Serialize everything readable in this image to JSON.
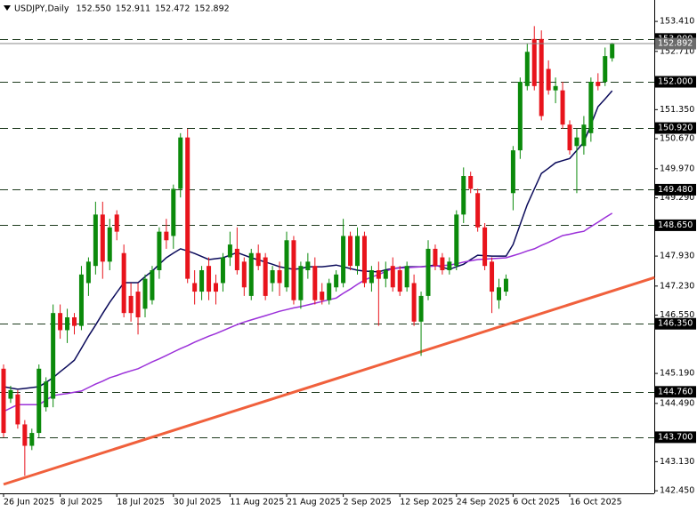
{
  "chart_data": {
    "type": "candlestick",
    "title": "USDJPY,Daily",
    "title_values": [
      "152.550",
      "152.911",
      "152.472",
      "152.892"
    ],
    "categories": [
      "26 Jun 2025",
      null,
      null,
      null,
      null,
      null,
      null,
      null,
      "8 Jul 2025",
      null,
      null,
      null,
      null,
      null,
      null,
      null,
      "18 Jul 2025",
      null,
      null,
      null,
      null,
      null,
      null,
      null,
      "30 Jul 2025",
      null,
      null,
      null,
      null,
      null,
      null,
      null,
      "11 Aug 2025",
      null,
      null,
      null,
      null,
      null,
      null,
      null,
      "21 Aug 2025",
      null,
      null,
      null,
      null,
      null,
      null,
      null,
      "2 Sep 2025",
      null,
      null,
      null,
      null,
      null,
      null,
      null,
      "12 Sep 2025",
      null,
      null,
      null,
      null,
      null,
      null,
      null,
      "24 Sep 2025",
      null,
      null,
      null,
      null,
      null,
      null,
      null,
      "6 Oct 2025",
      null,
      null,
      null,
      null,
      null,
      null,
      null,
      "16 Oct 2025",
      null,
      null,
      null,
      null,
      null,
      null
    ],
    "open": [
      145.3,
      144.6,
      144.7,
      144.0,
      143.5,
      143.8,
      144.4,
      144.6,
      146.6,
      146.2,
      146.5,
      146.3,
      147.3,
      147.7,
      148.9,
      147.8,
      148.9,
      148.0,
      147.0,
      147.1,
      146.7,
      146.9,
      147.6,
      148.5,
      148.4,
      149.5,
      150.7,
      147.3,
      147.1,
      147.7,
      147.3,
      147.3,
      147.9,
      148.1,
      147.8,
      147.0,
      148.0,
      147.9,
      147.3,
      147.6,
      147.2,
      148.3,
      146.9,
      147.6,
      147.7,
      147.1,
      146.9,
      147.2,
      147.3,
      148.4,
      147.7,
      148.4,
      147.3,
      147.6,
      147.4,
      147.7,
      147.6,
      147.2,
      147.3,
      146.4,
      147.0,
      148.1,
      147.9,
      147.6,
      147.7,
      148.9,
      149.8,
      149.4,
      148.6,
      147.8,
      146.9,
      147.1,
      149.4,
      150.4,
      151.9,
      153.0,
      153.0,
      152.3,
      151.8,
      151.8,
      151.0,
      150.5,
      150.5,
      150.8,
      152.0,
      152.0,
      152.55
    ],
    "high": [
      145.4,
      144.9,
      144.8,
      144.1,
      143.9,
      145.4,
      145.1,
      146.8,
      146.8,
      146.7,
      146.6,
      147.7,
      147.9,
      149.2,
      149.2,
      148.8,
      149.0,
      148.2,
      147.3,
      147.3,
      147.5,
      147.7,
      148.6,
      148.8,
      149.6,
      150.8,
      150.9,
      147.6,
      147.7,
      147.9,
      147.5,
      148.0,
      148.5,
      148.6,
      147.9,
      148.1,
      148.2,
      148.0,
      147.7,
      147.8,
      148.5,
      148.4,
      147.8,
      148.0,
      147.9,
      147.3,
      147.4,
      147.6,
      148.8,
      148.5,
      148.6,
      148.5,
      147.7,
      147.8,
      147.8,
      147.9,
      147.7,
      147.8,
      147.5,
      147.1,
      148.3,
      148.2,
      148.0,
      147.9,
      149.0,
      150.0,
      149.9,
      149.5,
      148.7,
      147.9,
      147.4,
      147.5,
      150.5,
      152.1,
      152.9,
      153.3,
      153.2,
      152.5,
      152.1,
      152.0,
      151.1,
      150.9,
      151.2,
      152.1,
      152.2,
      152.8,
      152.911
    ],
    "low": [
      143.7,
      144.5,
      143.9,
      142.8,
      143.4,
      143.7,
      144.3,
      144.4,
      146.0,
      145.9,
      146.1,
      146.2,
      147.0,
      147.5,
      147.4,
      147.6,
      148.3,
      146.5,
      146.4,
      146.1,
      146.5,
      146.8,
      147.4,
      148.1,
      148.1,
      149.3,
      147.3,
      146.8,
      146.9,
      146.9,
      146.8,
      147.1,
      147.7,
      147.5,
      147.0,
      146.9,
      147.6,
      146.9,
      147.1,
      147.0,
      147.1,
      146.8,
      146.7,
      147.4,
      146.8,
      146.8,
      146.8,
      147.1,
      147.2,
      147.6,
      147.5,
      147.2,
      147.1,
      146.3,
      147.2,
      147.1,
      147.0,
      147.1,
      146.3,
      145.6,
      146.9,
      147.6,
      147.5,
      147.5,
      147.6,
      148.7,
      149.4,
      148.5,
      147.6,
      146.6,
      146.7,
      147.0,
      149.0,
      150.2,
      151.8,
      151.8,
      151.1,
      151.7,
      151.5,
      150.9,
      150.3,
      149.4,
      150.3,
      150.6,
      151.8,
      151.9,
      152.472
    ],
    "close": [
      143.8,
      144.8,
      144.0,
      143.5,
      143.8,
      145.3,
      145.0,
      146.6,
      146.2,
      146.5,
      146.3,
      147.5,
      147.8,
      148.9,
      147.8,
      148.6,
      148.5,
      146.6,
      146.6,
      146.5,
      147.4,
      147.6,
      148.5,
      148.3,
      149.5,
      150.7,
      147.4,
      147.1,
      147.6,
      147.1,
      147.1,
      147.9,
      148.2,
      147.6,
      147.2,
      148.0,
      147.7,
      147.0,
      147.6,
      147.3,
      148.3,
      146.9,
      147.7,
      147.8,
      146.9,
      146.9,
      147.3,
      147.5,
      148.4,
      147.7,
      148.4,
      147.3,
      147.6,
      147.4,
      147.6,
      147.2,
      147.1,
      147.7,
      146.4,
      147.0,
      148.1,
      147.7,
      147.6,
      147.8,
      148.9,
      149.8,
      149.5,
      148.6,
      147.7,
      147.1,
      147.2,
      147.4,
      150.4,
      152.0,
      152.7,
      151.9,
      151.2,
      151.8,
      151.9,
      151.0,
      150.4,
      150.7,
      151.0,
      152.0,
      151.9,
      152.6,
      152.892
    ],
    "up_color": "#0b8a0b",
    "down_color": "#e8141c",
    "series": [
      {
        "color": "#0a0a5a",
        "values": [
          144.88,
          144.85,
          144.82,
          144.84,
          144.86,
          144.88,
          144.98,
          145.09,
          145.23,
          145.36,
          145.5,
          145.78,
          146.06,
          146.32,
          146.59,
          146.85,
          147.08,
          147.31,
          147.31,
          147.31,
          147.45,
          147.58,
          147.74,
          147.89,
          148.0,
          148.1,
          148.05,
          147.99,
          147.92,
          147.85,
          147.87,
          147.89,
          147.95,
          148.01,
          147.95,
          147.89,
          147.84,
          147.79,
          147.74,
          147.68,
          147.65,
          147.62,
          147.64,
          147.68,
          147.68,
          147.68,
          147.7,
          147.72,
          147.68,
          147.64,
          147.6,
          147.58,
          147.57,
          147.56,
          147.61,
          147.64,
          147.66,
          147.68,
          147.68,
          147.68,
          147.7,
          147.72,
          147.67,
          147.62,
          147.68,
          147.74,
          147.85,
          147.95,
          147.94,
          147.93,
          147.93,
          147.93,
          148.2,
          148.67,
          149.13,
          149.5,
          149.86,
          149.98,
          150.11,
          150.16,
          150.21,
          150.4,
          150.59,
          151.0,
          151.42,
          151.6,
          151.79
        ]
      },
      {
        "color": "#9b30d9",
        "values": [
          144.3,
          144.38,
          144.46,
          144.46,
          144.46,
          144.46,
          144.57,
          144.67,
          144.7,
          144.72,
          144.75,
          144.78,
          144.86,
          144.94,
          145.01,
          145.09,
          145.14,
          145.2,
          145.25,
          145.3,
          145.38,
          145.46,
          145.53,
          145.61,
          145.69,
          145.77,
          145.84,
          145.92,
          145.99,
          146.06,
          146.12,
          146.19,
          146.26,
          146.33,
          146.39,
          146.44,
          146.49,
          146.54,
          146.59,
          146.64,
          146.68,
          146.72,
          146.75,
          146.79,
          146.83,
          146.87,
          146.91,
          146.95,
          147.06,
          147.16,
          147.27,
          147.37,
          147.44,
          147.5,
          147.57,
          147.64,
          147.65,
          147.66,
          147.67,
          147.68,
          147.69,
          147.7,
          147.71,
          147.72,
          147.75,
          147.79,
          147.82,
          147.85,
          147.86,
          147.87,
          147.88,
          147.89,
          147.94,
          147.99,
          148.05,
          148.1,
          148.18,
          148.25,
          148.33,
          148.41,
          148.44,
          148.48,
          148.51,
          148.62,
          148.72,
          148.83,
          148.93
        ]
      }
    ],
    "trendline": {
      "color": "#f0603c",
      "x": [
        0,
        92
      ],
      "values": [
        142.6,
        147.43
      ]
    },
    "levels": [
      {
        "value": 153.0,
        "label": "153.000"
      },
      {
        "value": 152.0,
        "label": "152.000"
      },
      {
        "value": 150.92,
        "label": "150.920"
      },
      {
        "value": 149.48,
        "label": "149.480"
      },
      {
        "value": 148.65,
        "label": "148.650"
      },
      {
        "value": 146.35,
        "label": "146.350"
      },
      {
        "value": 144.76,
        "label": "144.760"
      },
      {
        "value": 143.7,
        "label": "143.700"
      }
    ],
    "last_price": {
      "value": 152.892,
      "label": "152.892"
    },
    "ylim": [
      142.39,
      153.91
    ],
    "yticks": [
      {
        "value": 153.41,
        "label": "153.410"
      },
      {
        "value": 152.71,
        "label": "152.710"
      },
      {
        "value": 151.35,
        "label": "151.350"
      },
      {
        "value": 150.67,
        "label": "150.670"
      },
      {
        "value": 149.97,
        "label": "149.970"
      },
      {
        "value": 149.29,
        "label": "149.290"
      },
      {
        "value": 147.93,
        "label": "147.930"
      },
      {
        "value": 147.23,
        "label": "147.230"
      },
      {
        "value": 146.55,
        "label": "146.550"
      },
      {
        "value": 145.19,
        "label": "145.190"
      },
      {
        "value": 144.49,
        "label": "144.490"
      },
      {
        "value": 143.13,
        "label": "143.130"
      },
      {
        "value": 142.45,
        "label": "142.450"
      }
    ]
  }
}
